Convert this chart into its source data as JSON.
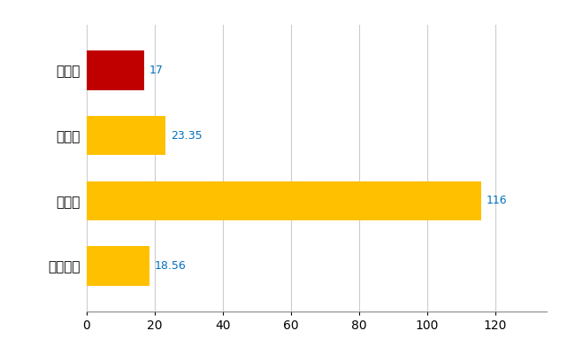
{
  "categories": [
    "全国平均",
    "県最大",
    "県平均",
    "勝山市"
  ],
  "values": [
    18.56,
    116,
    23.35,
    17
  ],
  "bar_colors": [
    "#FFC000",
    "#FFC000",
    "#FFC000",
    "#C00000"
  ],
  "value_labels": [
    "18.56",
    "116",
    "23.35",
    "17"
  ],
  "xlim": [
    0,
    135
  ],
  "xticks": [
    0,
    20,
    40,
    60,
    80,
    100,
    120
  ],
  "grid_color": "#CCCCCC",
  "label_color": "#0070C0",
  "bg_color": "#FFFFFF",
  "bar_height": 0.6
}
